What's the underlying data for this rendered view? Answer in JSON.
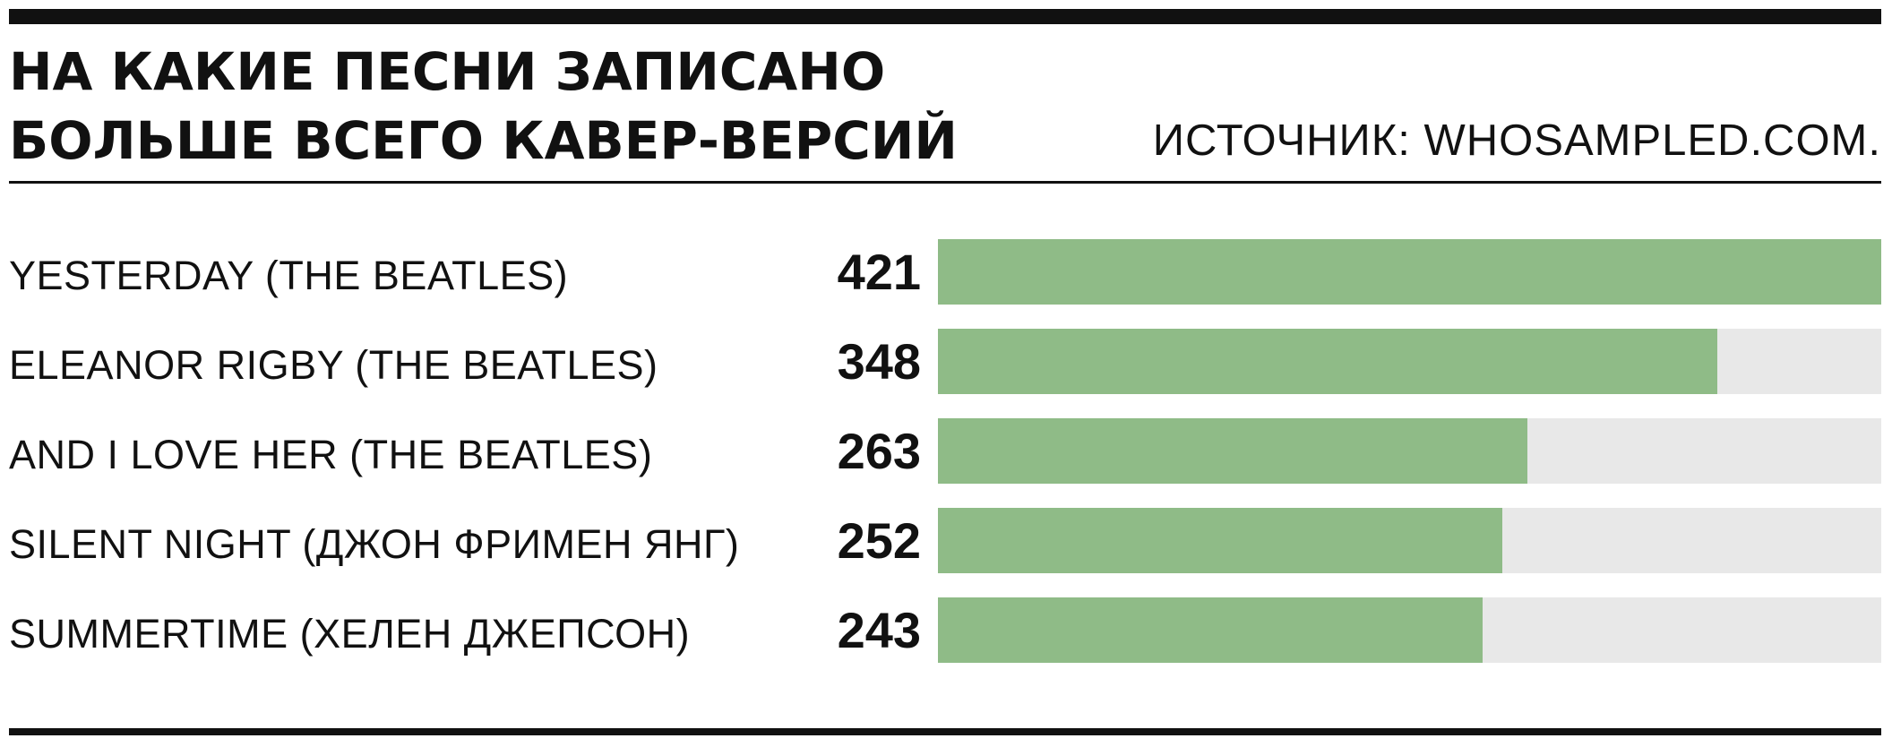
{
  "header": {
    "title_line1": "НА КАКИЕ ПЕСНИ ЗАПИСАНО",
    "title_line2": "БОЛЬШЕ ВСЕГО КАВЕР-ВЕРСИЙ",
    "source": "ИСТОЧНИК: WHOSAMPLED.COM."
  },
  "colors": {
    "bar": "#8fbb87",
    "track": "#e8e8e8",
    "text": "#111111"
  },
  "chart_data": {
    "type": "bar",
    "orientation": "horizontal",
    "title": "НА КАКИЕ ПЕСНИ ЗАПИСАНО БОЛЬШЕ ВСЕГО КАВЕР-ВЕРСИЙ",
    "xlabel": "",
    "ylabel": "",
    "xlim": [
      0,
      421
    ],
    "grid": false,
    "legend": "none",
    "categories": [
      "YESTERDAY (THE BEATLES)",
      "ELEANOR RIGBY (THE BEATLES)",
      "AND I LOVE HER (THE BEATLES)",
      "SILENT NIGHT (ДЖОН ФРИМЕН ЯНГ)",
      "SUMMERTIME (ХЕЛЕН ДЖЕПСОН)"
    ],
    "values": [
      421,
      348,
      263,
      252,
      243
    ]
  }
}
